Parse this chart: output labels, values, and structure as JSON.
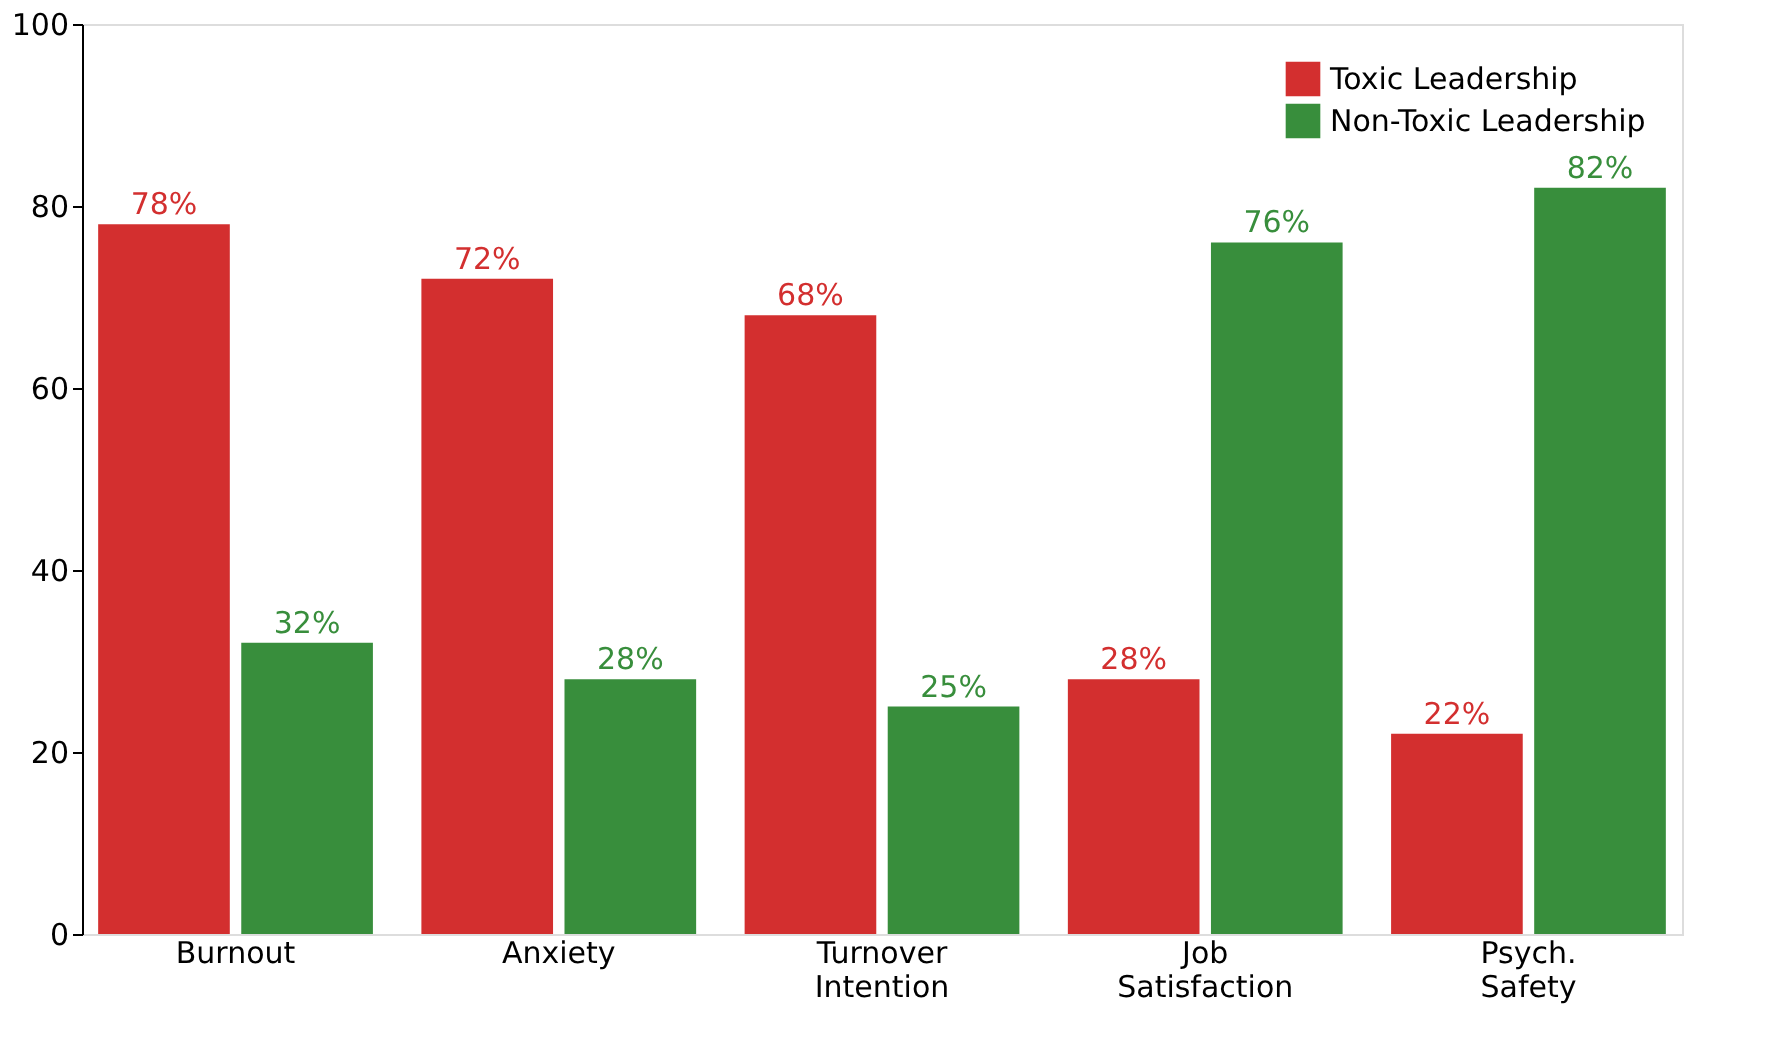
{
  "chart_data": {
    "type": "bar",
    "categories": [
      "Burnout",
      "Anxiety",
      "Turnover Intention",
      "Job Satisfaction",
      "Psych. Safety"
    ],
    "series": [
      {
        "name": "Toxic Leadership",
        "color": "#d32f2f",
        "values": [
          78,
          72,
          68,
          28,
          22
        ],
        "value_labels": [
          "78%",
          "72%",
          "68%",
          "28%",
          "22%"
        ]
      },
      {
        "name": "Non-Toxic Leadership",
        "color": "#388e3c",
        "values": [
          32,
          28,
          25,
          76,
          82
        ],
        "value_labels": [
          "32%",
          "28%",
          "25%",
          "76%",
          "82%"
        ]
      }
    ],
    "ylim": [
      0,
      100
    ],
    "yticks": [
      0,
      20,
      40,
      60,
      80,
      100
    ],
    "grid": false,
    "legend": "top right"
  }
}
